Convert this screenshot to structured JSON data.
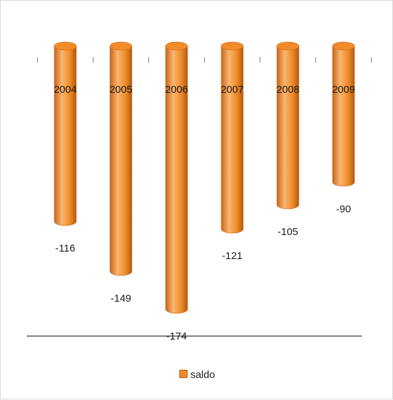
{
  "chart_data": {
    "type": "bar",
    "style": "3d-cylinder",
    "categories": [
      "2004",
      "2005",
      "2006",
      "2007",
      "2008",
      "2009"
    ],
    "series": [
      {
        "name": "saldo",
        "values": [
          -116,
          -149,
          -174,
          -121,
          -105,
          -90
        ],
        "color": "#f08c2a"
      }
    ],
    "data_labels": [
      "-116",
      "-149",
      "-174",
      "-121",
      "-105",
      "-90"
    ],
    "ylim": [
      -180,
      0
    ],
    "grid": false,
    "legend": {
      "position": "bottom",
      "entries": [
        "saldo"
      ]
    },
    "colors": {
      "bar": "#f08c2a",
      "bar_dark": "#c8661a",
      "bar_light": "#f8b670",
      "axis": "#808080"
    }
  }
}
